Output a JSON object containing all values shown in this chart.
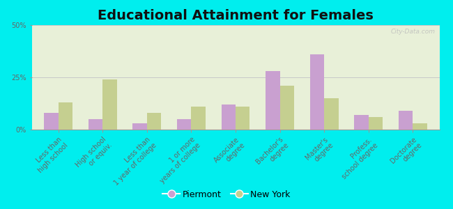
{
  "title": "Educational Attainment for Females",
  "categories": [
    "Less than\nhigh school",
    "High school\nor equiv.",
    "Less than\n1 year of college",
    "1 or more\nyears of college",
    "Associate\ndegree",
    "Bachelor's\ndegree",
    "Master's\ndegree",
    "Profess.\nschool degree",
    "Doctorate\ndegree"
  ],
  "piermont": [
    8,
    5,
    3,
    5,
    12,
    28,
    36,
    7,
    9
  ],
  "new_york": [
    13,
    24,
    8,
    11,
    11,
    21,
    15,
    6,
    3
  ],
  "piermont_color": "#c9a0d0",
  "new_york_color": "#c5cf90",
  "background_color": "#00eeee",
  "plot_bg_color": "#e8f0d8",
  "grid_color": "#c8c8c8",
  "ylim": [
    0,
    50
  ],
  "yticks": [
    0,
    25,
    50
  ],
  "ytick_labels": [
    "0%",
    "25%",
    "50%"
  ],
  "title_fontsize": 14,
  "tick_fontsize": 7,
  "legend_fontsize": 9,
  "bar_width": 0.32,
  "watermark": "City-Data.com"
}
